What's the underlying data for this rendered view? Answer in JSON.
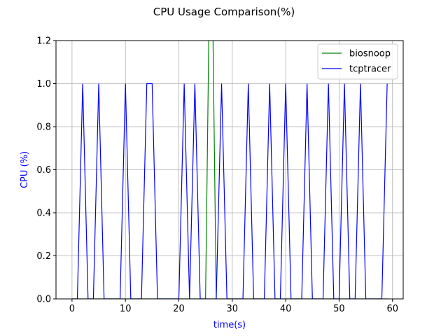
{
  "chart_data": {
    "type": "line",
    "title": "CPU Usage Comparison(%)",
    "xlabel": "time(s)",
    "ylabel": "CPU (%)",
    "axis_label_color": "#0000ff",
    "xlim": [
      -3,
      62
    ],
    "ylim": [
      0,
      1.2
    ],
    "xticks": [
      0,
      10,
      20,
      30,
      40,
      50,
      60
    ],
    "yticks": [
      0.0,
      0.2,
      0.4,
      0.6,
      0.8,
      1.0,
      1.2
    ],
    "ytick_labels": [
      "0.0",
      "0.2",
      "0.4",
      "0.6",
      "0.8",
      "1.0",
      "1.2"
    ],
    "grid": true,
    "legend_position": "top-right",
    "series": [
      {
        "name": "biosnoop",
        "color": "#008000",
        "x": [
          0,
          1,
          2,
          3,
          4,
          5,
          6,
          7,
          8,
          9,
          10,
          11,
          12,
          13,
          14,
          15,
          16,
          17,
          18,
          19,
          20,
          21,
          22,
          23,
          24,
          25,
          26,
          27,
          28,
          29,
          30,
          31,
          32,
          33,
          34,
          35,
          36,
          37,
          38,
          39,
          40,
          41,
          42,
          43,
          44,
          45,
          46,
          47,
          48,
          49,
          50,
          51,
          52,
          53,
          54,
          55,
          56,
          57,
          58,
          59
        ],
        "y": [
          0,
          0,
          0,
          0,
          0,
          0,
          0,
          0,
          0,
          0,
          0,
          0,
          0,
          0,
          0,
          0,
          0,
          0,
          0,
          0,
          0,
          0,
          0,
          0,
          0,
          0,
          2,
          0,
          0,
          0,
          0,
          0,
          0,
          0,
          0,
          0,
          0,
          0,
          0,
          0,
          0,
          0,
          0,
          0,
          0,
          0,
          0,
          0,
          0,
          0,
          0,
          0,
          0,
          0,
          0,
          0,
          0,
          0,
          0,
          0
        ]
      },
      {
        "name": "tcptracer",
        "color": "#0000ff",
        "x": [
          0,
          1,
          2,
          3,
          4,
          5,
          6,
          7,
          8,
          9,
          10,
          11,
          12,
          13,
          14,
          15,
          16,
          17,
          18,
          19,
          20,
          21,
          22,
          23,
          24,
          25,
          26,
          27,
          28,
          29,
          30,
          31,
          32,
          33,
          34,
          35,
          36,
          37,
          38,
          39,
          40,
          41,
          42,
          43,
          44,
          45,
          46,
          47,
          48,
          49,
          50,
          51,
          52,
          53,
          54,
          55,
          56,
          57,
          58,
          59
        ],
        "y": [
          0,
          0,
          1,
          0,
          0,
          1,
          0,
          0,
          0,
          0,
          1,
          0,
          0,
          0,
          1,
          1,
          0,
          0,
          0,
          0,
          0,
          1,
          0,
          1,
          0,
          0,
          0,
          0,
          1,
          0,
          0,
          0,
          0,
          1,
          0,
          0,
          0,
          1,
          0,
          0,
          1,
          0,
          0,
          0,
          1,
          0,
          0,
          0,
          1,
          0,
          0,
          1,
          0,
          0,
          1,
          0,
          0,
          0,
          0,
          1
        ]
      }
    ]
  }
}
